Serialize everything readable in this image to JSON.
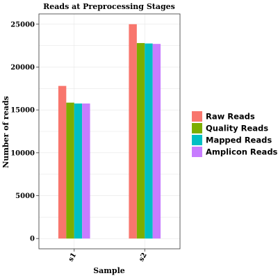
{
  "chart_data": {
    "type": "bar",
    "title": "Reads at Preprocessing Stages",
    "xlabel": "Sample",
    "ylabel": "Number of reads",
    "categories": [
      "s1",
      "s2"
    ],
    "series": [
      {
        "name": "Raw Reads",
        "color": "#F8766D",
        "values": [
          17800,
          25000
        ]
      },
      {
        "name": "Quality Reads",
        "color": "#7CAE00",
        "values": [
          15850,
          22800
        ]
      },
      {
        "name": "Mapped Reads",
        "color": "#00BFC4",
        "values": [
          15750,
          22750
        ]
      },
      {
        "name": "Amplicon Reads",
        "color": "#C77CFF",
        "values": [
          15750,
          22700
        ]
      }
    ],
    "ylim": [
      -1200,
      26200
    ],
    "yticks": [
      0,
      5000,
      10000,
      15000,
      20000,
      25000
    ],
    "grid": true,
    "legend_position": "right"
  }
}
